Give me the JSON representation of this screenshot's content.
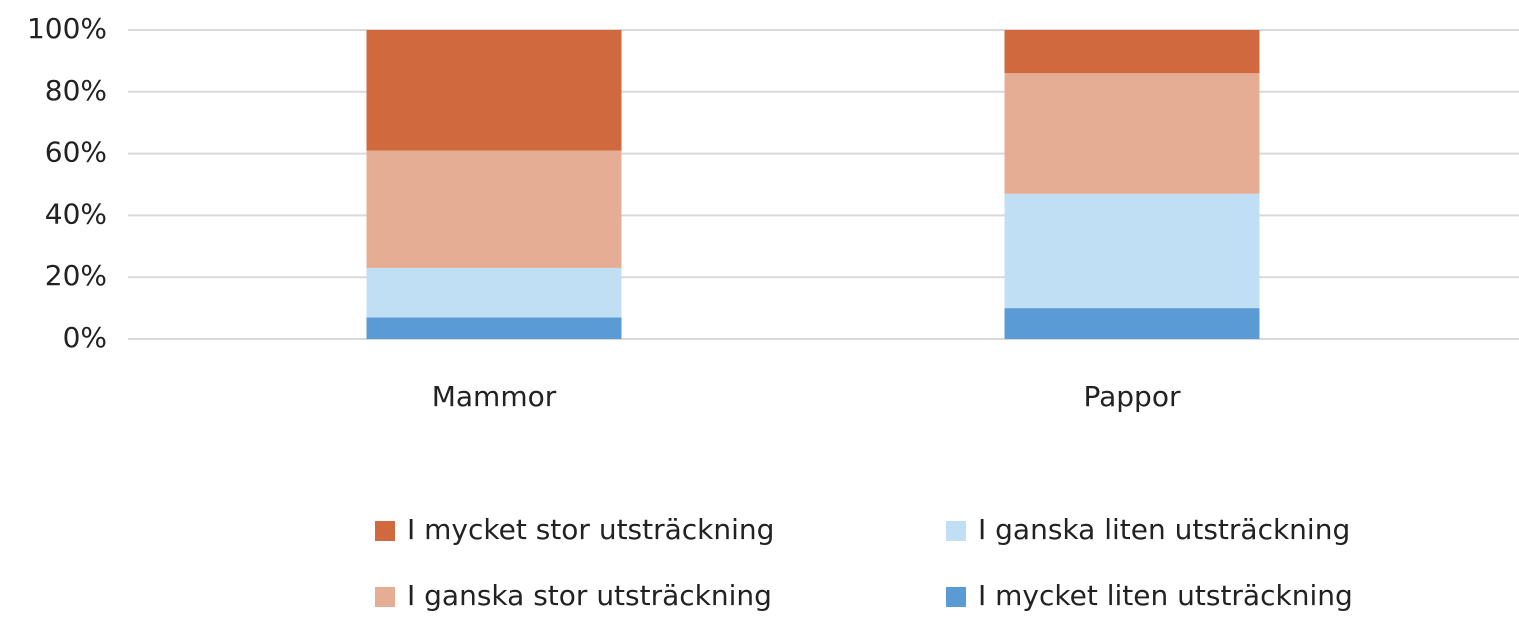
{
  "chart_data": {
    "type": "stacked_bar",
    "categories": [
      "Mammor",
      "Pappor"
    ],
    "series": [
      {
        "name": "I mycket liten utsträckning",
        "color": "#5b9bd5",
        "values": [
          7,
          10
        ]
      },
      {
        "name": "I ganska liten utsträckning",
        "color": "#c0dff5",
        "values": [
          16,
          37
        ]
      },
      {
        "name": "I ganska stor utsträckning",
        "color": "#e5ae94",
        "values": [
          38,
          39
        ]
      },
      {
        "name": "I mycket stor utsträckning",
        "color": "#d06a3e",
        "values": [
          39,
          14
        ]
      }
    ],
    "ylim": [
      0,
      100
    ],
    "yticks": [
      {
        "value": 0,
        "label": "0%"
      },
      {
        "value": 20,
        "label": "20%"
      },
      {
        "value": 40,
        "label": "40%"
      },
      {
        "value": 60,
        "label": "60%"
      },
      {
        "value": 80,
        "label": "80%"
      },
      {
        "value": 100,
        "label": "100%"
      }
    ],
    "grid": true,
    "legend": "bottom"
  }
}
